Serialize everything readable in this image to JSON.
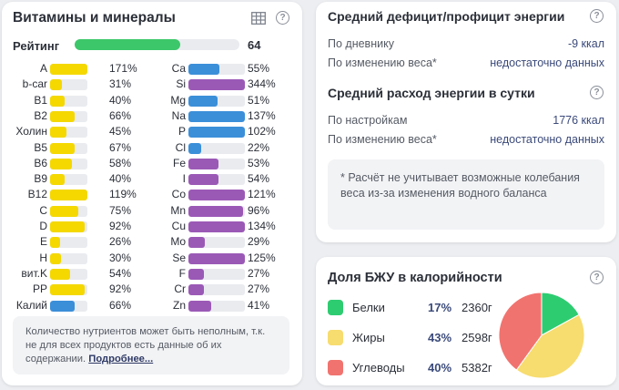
{
  "vitamins": {
    "title": "Витамины и минералы",
    "rating_label": "Рейтинг",
    "rating_value": "64",
    "rating_fraction": 0.64,
    "rating_color": "#3cc76a",
    "left": [
      {
        "name": "A",
        "pct": "171%",
        "fraction": 1.71,
        "color": "#f4d800"
      },
      {
        "name": "b-car",
        "pct": "31%",
        "fraction": 0.31,
        "color": "#f4d800"
      },
      {
        "name": "B1",
        "pct": "40%",
        "fraction": 0.4,
        "color": "#f4d800"
      },
      {
        "name": "B2",
        "pct": "66%",
        "fraction": 0.66,
        "color": "#f4d800"
      },
      {
        "name": "Холин",
        "pct": "45%",
        "fraction": 0.45,
        "color": "#f4d800"
      },
      {
        "name": "B5",
        "pct": "67%",
        "fraction": 0.67,
        "color": "#f4d800"
      },
      {
        "name": "B6",
        "pct": "58%",
        "fraction": 0.58,
        "color": "#f4d800"
      },
      {
        "name": "B9",
        "pct": "40%",
        "fraction": 0.4,
        "color": "#f4d800"
      },
      {
        "name": "B12",
        "pct": "119%",
        "fraction": 1.19,
        "color": "#f4d800"
      },
      {
        "name": "C",
        "pct": "75%",
        "fraction": 0.75,
        "color": "#f4d800"
      },
      {
        "name": "D",
        "pct": "92%",
        "fraction": 0.92,
        "color": "#f4d800"
      },
      {
        "name": "E",
        "pct": "26%",
        "fraction": 0.26,
        "color": "#f4d800"
      },
      {
        "name": "H",
        "pct": "30%",
        "fraction": 0.3,
        "color": "#f4d800"
      },
      {
        "name": "вит.K",
        "pct": "54%",
        "fraction": 0.54,
        "color": "#f4d800"
      },
      {
        "name": "PP",
        "pct": "92%",
        "fraction": 0.92,
        "color": "#f4d800"
      },
      {
        "name": "Калий",
        "pct": "66%",
        "fraction": 0.66,
        "color": "#3b8fd9"
      }
    ],
    "right": [
      {
        "name": "Ca",
        "pct": "55%",
        "fraction": 0.55,
        "color": "#3b8fd9"
      },
      {
        "name": "Si",
        "pct": "344%",
        "fraction": 3.44,
        "color": "#9b59b6"
      },
      {
        "name": "Mg",
        "pct": "51%",
        "fraction": 0.51,
        "color": "#3b8fd9"
      },
      {
        "name": "Na",
        "pct": "137%",
        "fraction": 1.37,
        "color": "#3b8fd9"
      },
      {
        "name": "P",
        "pct": "102%",
        "fraction": 1.02,
        "color": "#3b8fd9"
      },
      {
        "name": "Cl",
        "pct": "22%",
        "fraction": 0.22,
        "color": "#3b8fd9"
      },
      {
        "name": "Fe",
        "pct": "53%",
        "fraction": 0.53,
        "color": "#9b59b6"
      },
      {
        "name": "I",
        "pct": "54%",
        "fraction": 0.54,
        "color": "#9b59b6"
      },
      {
        "name": "Co",
        "pct": "121%",
        "fraction": 1.21,
        "color": "#9b59b6"
      },
      {
        "name": "Mn",
        "pct": "96%",
        "fraction": 0.96,
        "color": "#9b59b6"
      },
      {
        "name": "Cu",
        "pct": "134%",
        "fraction": 1.34,
        "color": "#9b59b6"
      },
      {
        "name": "Mo",
        "pct": "29%",
        "fraction": 0.29,
        "color": "#9b59b6"
      },
      {
        "name": "Se",
        "pct": "125%",
        "fraction": 1.25,
        "color": "#9b59b6"
      },
      {
        "name": "F",
        "pct": "27%",
        "fraction": 0.27,
        "color": "#9b59b6"
      },
      {
        "name": "Cr",
        "pct": "27%",
        "fraction": 0.27,
        "color": "#9b59b6"
      },
      {
        "name": "Zn",
        "pct": "41%",
        "fraction": 0.41,
        "color": "#9b59b6"
      }
    ],
    "note_text": "Количество нутриентов может быть неполным, т.к. не для всех продуктов есть данные об их содержании.",
    "note_link": "Подробнее..."
  },
  "energy": {
    "title_deficit": "Средний дефицит/профицит энергии",
    "deficit_rows": [
      {
        "label": "По дневнику",
        "value": "-9 ккал"
      },
      {
        "label": "По изменению веса*",
        "value": "недостаточно данных"
      }
    ],
    "title_expense": "Средний расход энергии в сутки",
    "expense_rows": [
      {
        "label": "По настройкам",
        "value": "1776 ккал"
      },
      {
        "label": "По изменению веса*",
        "value": "недостаточно данных"
      }
    ],
    "note": "* Расчёт не учитывает возможные колебания веса из-за изменения водного баланса"
  },
  "macros": {
    "title": "Доля БЖУ в калорийности",
    "items": [
      {
        "name": "Белки",
        "pct": "17%",
        "fraction": 0.17,
        "grams": "2360г",
        "color": "#2ecc71"
      },
      {
        "name": "Жиры",
        "pct": "43%",
        "fraction": 0.43,
        "grams": "2598г",
        "color": "#f7dc6f"
      },
      {
        "name": "Углеводы",
        "pct": "40%",
        "fraction": 0.4,
        "grams": "5382г",
        "color": "#f1736f"
      }
    ]
  }
}
